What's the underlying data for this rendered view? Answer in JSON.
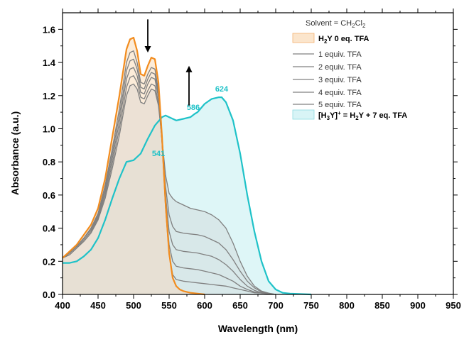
{
  "chart_data": {
    "type": "line",
    "title": "",
    "xlabel": "Wavelength (nm)",
    "ylabel": "Absorbance (a.u.)",
    "xlim": [
      400,
      950
    ],
    "ylim": [
      0.0,
      1.7
    ],
    "xticks": [
      400,
      450,
      500,
      550,
      600,
      650,
      700,
      750,
      800,
      850,
      900,
      950
    ],
    "yticks": [
      0.0,
      0.2,
      0.4,
      0.6,
      0.8,
      1.0,
      1.2,
      1.4,
      1.6
    ],
    "xtick_labels": [
      "400",
      "450",
      "500",
      "550",
      "600",
      "650",
      "700",
      "750",
      "800",
      "850",
      "900",
      "950"
    ],
    "ytick_labels": [
      "0.0",
      "0.2",
      "0.4",
      "0.6",
      "0.8",
      "1.0",
      "1.2",
      "1.4",
      "1.6"
    ],
    "grid": false,
    "legend_position": "top-right",
    "solvent": {
      "prefix": "Solvent = CH",
      "sub1": "2",
      "mid": "Cl",
      "sub2": "2"
    },
    "legend": {
      "start": {
        "p1": "H",
        "sub": "2",
        "p2": "Y 0 eq. TFA"
      },
      "middle": [
        "1 equiv. TFA",
        "2 equiv. TFA",
        "3 equiv. TFA",
        "4 equiv. TFA",
        "5 equiv. TFA"
      ],
      "end": {
        "p1": "[H",
        "sub": "3",
        "p2": "Y]",
        "sup": "+",
        "p3": " = H",
        "sub2": "2",
        "p4": "Y + 7 eq. TFA"
      }
    },
    "peak_labels": [
      {
        "text": "541",
        "x": 541,
        "y": 0.81
      },
      {
        "text": "586",
        "x": 586,
        "y": 1.08
      },
      {
        "text": "624",
        "x": 624,
        "y": 1.19
      }
    ],
    "arrows": [
      {
        "direction": "down",
        "x": 520,
        "y_from": 1.66,
        "y_to": 1.46
      },
      {
        "direction": "up",
        "x": 578,
        "y_from": 1.14,
        "y_to": 1.38
      }
    ],
    "colors": {
      "start_line": "#f28c1e",
      "start_fill": "#fbe5cc",
      "end_line": "#1fc2c8",
      "end_fill": "#d8f4f6",
      "middle_line": "#808080"
    },
    "series": [
      {
        "name": "H2Y 0 eq. TFA",
        "x": [
          400,
          410,
          420,
          430,
          440,
          450,
          460,
          470,
          480,
          485,
          490,
          495,
          500,
          505,
          510,
          515,
          520,
          525,
          530,
          535,
          540,
          545,
          550,
          555,
          560,
          565,
          570,
          580,
          590,
          600
        ],
        "y": [
          0.22,
          0.26,
          0.3,
          0.36,
          0.42,
          0.52,
          0.7,
          0.95,
          1.2,
          1.34,
          1.48,
          1.54,
          1.55,
          1.47,
          1.33,
          1.32,
          1.38,
          1.43,
          1.42,
          1.28,
          0.95,
          0.55,
          0.25,
          0.1,
          0.05,
          0.03,
          0.02,
          0.01,
          0.005,
          0.0
        ]
      },
      {
        "name": "1 equiv. TFA",
        "x": [
          400,
          410,
          420,
          430,
          440,
          450,
          460,
          470,
          480,
          485,
          490,
          495,
          500,
          505,
          510,
          515,
          520,
          525,
          530,
          535,
          540,
          545,
          550,
          555,
          560,
          570,
          580,
          590,
          600,
          610,
          620,
          630,
          640,
          650,
          660,
          670,
          680,
          690,
          700
        ],
        "y": [
          0.22,
          0.25,
          0.29,
          0.34,
          0.4,
          0.49,
          0.66,
          0.88,
          1.12,
          1.26,
          1.4,
          1.46,
          1.47,
          1.4,
          1.28,
          1.27,
          1.33,
          1.37,
          1.36,
          1.23,
          0.92,
          0.52,
          0.24,
          0.12,
          0.09,
          0.08,
          0.075,
          0.07,
          0.065,
          0.06,
          0.055,
          0.05,
          0.04,
          0.03,
          0.02,
          0.01,
          0.008,
          0.005,
          0.0
        ]
      },
      {
        "name": "2 equiv. TFA",
        "x": [
          400,
          410,
          420,
          430,
          440,
          450,
          460,
          470,
          480,
          485,
          490,
          495,
          500,
          505,
          510,
          515,
          520,
          525,
          530,
          535,
          540,
          545,
          550,
          555,
          560,
          570,
          580,
          590,
          600,
          610,
          620,
          630,
          640,
          650,
          660,
          670,
          680,
          690,
          700
        ],
        "y": [
          0.22,
          0.25,
          0.29,
          0.34,
          0.4,
          0.48,
          0.64,
          0.85,
          1.08,
          1.21,
          1.35,
          1.41,
          1.42,
          1.36,
          1.25,
          1.24,
          1.3,
          1.34,
          1.33,
          1.21,
          0.92,
          0.55,
          0.3,
          0.2,
          0.17,
          0.16,
          0.155,
          0.15,
          0.14,
          0.13,
          0.12,
          0.1,
          0.08,
          0.05,
          0.03,
          0.015,
          0.008,
          0.004,
          0.0
        ]
      },
      {
        "name": "3 equiv. TFA",
        "x": [
          400,
          410,
          420,
          430,
          440,
          450,
          460,
          470,
          480,
          485,
          490,
          495,
          500,
          505,
          510,
          515,
          520,
          525,
          530,
          535,
          540,
          545,
          550,
          555,
          560,
          570,
          580,
          590,
          600,
          610,
          620,
          630,
          640,
          650,
          660,
          670,
          680,
          690,
          700
        ],
        "y": [
          0.22,
          0.25,
          0.29,
          0.34,
          0.39,
          0.47,
          0.62,
          0.82,
          1.04,
          1.17,
          1.3,
          1.36,
          1.37,
          1.32,
          1.22,
          1.21,
          1.27,
          1.31,
          1.3,
          1.19,
          0.93,
          0.6,
          0.38,
          0.3,
          0.27,
          0.26,
          0.255,
          0.25,
          0.24,
          0.23,
          0.21,
          0.18,
          0.14,
          0.09,
          0.05,
          0.025,
          0.01,
          0.005,
          0.0
        ]
      },
      {
        "name": "4 equiv. TFA",
        "x": [
          400,
          410,
          420,
          430,
          440,
          450,
          460,
          470,
          480,
          485,
          490,
          495,
          500,
          505,
          510,
          515,
          520,
          525,
          530,
          535,
          540,
          545,
          550,
          555,
          560,
          570,
          580,
          590,
          600,
          610,
          620,
          630,
          640,
          650,
          660,
          670,
          680,
          690,
          700
        ],
        "y": [
          0.22,
          0.24,
          0.28,
          0.33,
          0.38,
          0.46,
          0.6,
          0.79,
          1.0,
          1.12,
          1.25,
          1.31,
          1.32,
          1.28,
          1.19,
          1.18,
          1.23,
          1.27,
          1.26,
          1.16,
          0.93,
          0.65,
          0.48,
          0.41,
          0.38,
          0.37,
          0.365,
          0.36,
          0.35,
          0.33,
          0.31,
          0.27,
          0.21,
          0.14,
          0.08,
          0.04,
          0.015,
          0.006,
          0.0
        ]
      },
      {
        "name": "5 equiv. TFA",
        "x": [
          400,
          410,
          420,
          430,
          440,
          450,
          460,
          470,
          480,
          485,
          490,
          495,
          500,
          505,
          510,
          515,
          520,
          525,
          530,
          535,
          540,
          545,
          550,
          555,
          560,
          570,
          580,
          590,
          600,
          610,
          620,
          630,
          640,
          650,
          660,
          670,
          680,
          690,
          700
        ],
        "y": [
          0.22,
          0.24,
          0.28,
          0.32,
          0.37,
          0.45,
          0.58,
          0.76,
          0.96,
          1.08,
          1.2,
          1.26,
          1.27,
          1.24,
          1.16,
          1.15,
          1.2,
          1.24,
          1.23,
          1.14,
          0.94,
          0.72,
          0.61,
          0.58,
          0.56,
          0.54,
          0.52,
          0.51,
          0.5,
          0.48,
          0.45,
          0.4,
          0.31,
          0.2,
          0.11,
          0.05,
          0.02,
          0.008,
          0.0
        ]
      },
      {
        "name": "[H3Y]+ = H2Y + 7 eq. TFA",
        "x": [
          400,
          410,
          420,
          430,
          440,
          450,
          460,
          470,
          480,
          490,
          500,
          510,
          520,
          530,
          540,
          545,
          550,
          560,
          570,
          580,
          586,
          590,
          600,
          610,
          620,
          624,
          630,
          640,
          650,
          660,
          670,
          680,
          690,
          700,
          710,
          720,
          750
        ],
        "y": [
          0.19,
          0.19,
          0.2,
          0.23,
          0.27,
          0.34,
          0.45,
          0.58,
          0.7,
          0.8,
          0.81,
          0.85,
          0.94,
          1.02,
          1.07,
          1.08,
          1.07,
          1.05,
          1.06,
          1.07,
          1.09,
          1.1,
          1.15,
          1.18,
          1.19,
          1.19,
          1.16,
          1.05,
          0.85,
          0.6,
          0.38,
          0.2,
          0.08,
          0.03,
          0.01,
          0.005,
          0.0
        ]
      }
    ]
  }
}
